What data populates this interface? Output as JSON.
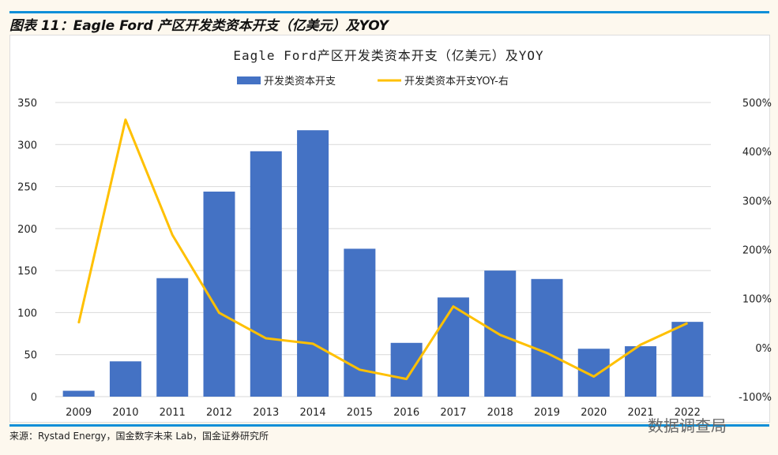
{
  "header": {
    "title": "图表 11：Eagle Ford 产区开发类资本开支（亿美元）及YOY"
  },
  "footer": {
    "source": "来源：Rystad Energy，国金数字未来 Lab，国金证券研究所",
    "watermark": "数据调查局"
  },
  "colors": {
    "bar": "#4472c4",
    "line": "#ffc000",
    "accent": "#0f8fd8"
  },
  "chart_data": {
    "type": "bar+line",
    "title": "Eagle Ford产区开发类资本开支（亿美元）及YOY",
    "categories": [
      "2009",
      "2010",
      "2011",
      "2012",
      "2013",
      "2014",
      "2015",
      "2016",
      "2017",
      "2018",
      "2019",
      "2020",
      "2021",
      "2022"
    ],
    "series": [
      {
        "name": "开发类资本开支",
        "type": "bar",
        "axis": "left",
        "values": [
          7,
          42,
          141,
          244,
          292,
          317,
          176,
          64,
          118,
          150,
          140,
          57,
          60,
          89
        ]
      },
      {
        "name": "开发类资本开支YOY-右",
        "type": "line",
        "axis": "right",
        "values": [
          50,
          465,
          230,
          71,
          19,
          8,
          -45,
          -64,
          84,
          26,
          -11,
          -59,
          6,
          50
        ]
      }
    ],
    "ylim": [
      0,
      350
    ],
    "yticks": [
      "0",
      "50",
      "100",
      "150",
      "200",
      "250",
      "300",
      "350"
    ],
    "y2lim": [
      -100,
      500
    ],
    "y2ticks": [
      "-100%",
      "0%",
      "100%",
      "200%",
      "300%",
      "400%",
      "500%"
    ],
    "legend": "top-center",
    "grid": true
  }
}
